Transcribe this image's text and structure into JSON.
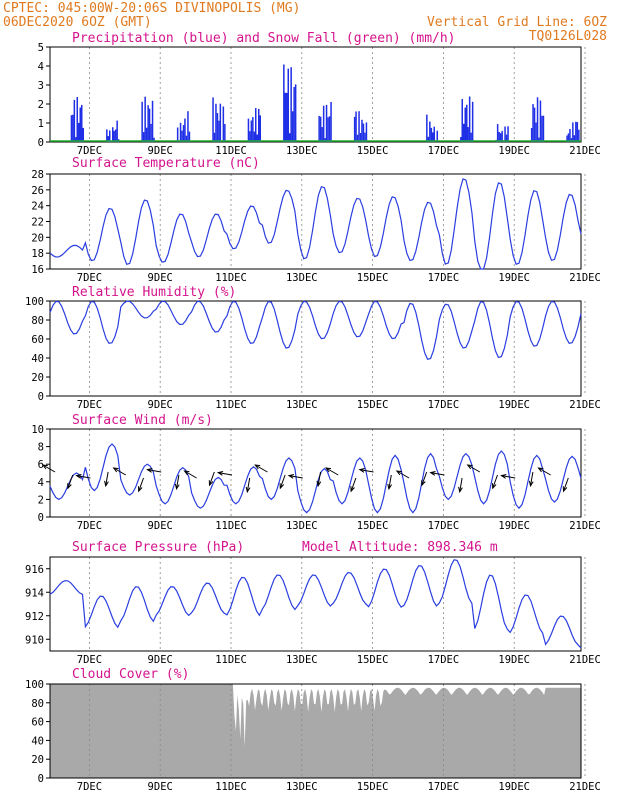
{
  "header": {
    "line1_left": "CPTEC:   045:00W-20:06S   DIVINOPOLIS (MG)",
    "line2_left": "06DEC2020 6OZ (GMT)",
    "line1_right": "Vertical Grid Line: 6OZ",
    "line2_right": "TQ0126L028"
  },
  "colors": {
    "header": "#e07a1f",
    "title": "#d4148c",
    "precip": "#1f2fe6",
    "snow": "#22b02a",
    "line": "#2a3ee0",
    "cloud": "#a9a9a9",
    "arrow": "#000000"
  },
  "x_labels": [
    "7DEC",
    "9DEC",
    "11DEC",
    "13DEC",
    "15DEC",
    "17DEC",
    "19DEC",
    "21DEC"
  ],
  "chart_data": [
    {
      "type": "bar",
      "id": "precip",
      "title": "Precipitation (blue) and Snow Fall (green) (mm/h)",
      "ylim": [
        0,
        5
      ],
      "yticks": [
        0,
        1,
        2,
        3,
        4,
        5
      ],
      "series": [
        {
          "name": "Precipitation",
          "values": [
            1,
            1,
            0,
            0,
            0,
            0,
            0,
            0,
            0,
            0,
            0,
            0,
            0,
            0,
            0,
            0,
            0,
            0,
            0,
            0,
            0,
            0,
            0,
            0,
            0,
            0,
            0,
            0,
            0,
            0,
            0,
            0,
            0,
            0,
            0,
            0,
            0,
            0,
            0,
            0,
            0,
            0,
            0,
            0,
            0,
            0,
            0,
            0,
            0,
            0,
            0,
            0,
            0,
            0,
            0,
            0,
            0,
            0,
            0,
            0,
            0,
            0,
            0,
            0,
            0,
            0,
            0,
            0,
            0,
            0,
            0,
            0,
            0,
            0,
            0,
            0,
            0,
            0,
            0,
            0,
            0,
            0,
            0,
            0,
            0,
            0,
            0,
            0,
            0,
            0,
            0,
            0,
            0,
            0,
            0,
            0,
            0,
            0,
            0,
            0,
            0,
            0,
            0,
            0,
            0,
            0,
            0,
            0,
            0,
            0,
            0,
            0,
            0,
            0,
            0,
            0,
            0,
            0,
            0,
            0,
            0,
            0,
            0,
            0,
            0,
            0,
            0,
            0,
            0,
            0,
            0,
            0,
            0,
            0,
            0,
            0,
            0,
            0,
            0,
            0,
            0,
            0,
            0,
            0,
            0,
            0,
            0,
            0,
            0,
            0,
            0,
            0,
            0,
            0,
            0,
            0,
            0,
            0,
            0,
            0,
            0,
            0,
            0,
            0,
            0,
            0,
            0,
            0,
            0,
            0,
            0,
            0,
            0,
            0,
            0,
            0,
            0,
            0,
            0,
            0,
            0,
            0,
            0,
            0,
            0,
            0,
            0,
            0,
            0,
            0,
            0,
            0,
            0,
            0,
            0,
            0,
            0,
            0,
            0,
            0,
            0,
            0,
            0,
            0,
            0,
            0,
            0,
            0,
            0,
            0,
            0,
            0,
            0,
            0,
            0,
            0,
            0,
            0,
            0,
            0,
            0,
            0,
            0,
            0,
            0,
            0,
            0,
            0,
            0,
            0,
            0,
            0,
            0,
            0,
            0,
            0,
            0,
            0,
            0,
            0,
            0,
            0,
            0,
            0,
            0,
            0,
            0,
            0,
            0,
            0,
            0,
            0,
            0,
            0,
            0,
            0,
            0,
            0,
            0,
            0,
            0,
            0,
            0,
            0,
            0,
            0,
            0,
            0,
            0,
            0,
            0,
            0,
            0,
            0,
            0,
            0,
            0,
            0,
            0,
            0,
            0,
            0,
            0,
            0,
            0,
            0,
            0,
            0,
            0,
            0,
            0,
            0,
            0,
            0,
            0,
            0,
            0,
            0,
            0,
            0,
            0,
            0,
            0,
            0,
            0,
            0,
            0,
            0,
            0,
            0,
            0,
            0,
            0,
            0,
            0,
            0,
            0,
            0,
            0,
            0,
            0,
            0,
            0,
            0,
            0,
            0,
            0,
            0,
            0,
            0,
            0,
            0,
            0,
            0,
            0,
            0,
            0,
            0,
            0,
            0,
            0,
            0,
            0,
            0,
            0,
            0,
            0,
            0,
            0,
            0,
            0,
            0,
            0,
            0,
            0,
            0,
            0,
            0,
            0,
            0,
            0,
            0,
            0,
            0,
            0,
            0,
            0,
            0,
            0,
            0,
            0,
            0,
            0,
            0,
            0,
            0,
            0,
            0,
            0,
            0,
            0,
            0,
            0,
            0,
            0,
            0,
            0,
            0,
            0
          ]
        },
        {
          "name": "Snow Fall",
          "values": []
        }
      ],
      "xlabels": [
        "7DEC",
        "9DEC",
        "11DEC",
        "13DEC",
        "15DEC",
        "17DEC",
        "19DEC",
        "21DEC"
      ]
    },
    {
      "type": "line",
      "id": "temp",
      "title": "Surface Temperature (nC)",
      "ylim": [
        16,
        28
      ],
      "yticks": [
        16,
        18,
        20,
        22,
        24,
        26,
        28
      ],
      "daily_max": [
        19,
        23.7,
        24.8,
        23,
        23,
        24,
        26,
        26.5,
        25,
        25.2,
        24.5,
        27.5,
        27,
        26,
        25.5,
        25,
        24.5
      ],
      "daily_min": [
        17.5,
        17,
        16.5,
        16.8,
        17.5,
        18.5,
        19.2,
        17.2,
        18,
        17.5,
        17,
        16.5,
        15.5,
        16.5,
        17,
        18,
        20
      ]
    },
    {
      "type": "line",
      "id": "rh",
      "title": "Relative Humidity (%)",
      "ylim": [
        0,
        100
      ],
      "yticks": [
        0,
        20,
        40,
        60,
        80,
        100
      ],
      "daily_max": [
        100,
        100,
        100,
        100,
        100,
        100,
        100,
        100,
        100,
        100,
        98,
        97,
        100,
        100,
        100,
        100,
        100
      ],
      "daily_min": [
        65,
        55,
        82,
        75,
        67,
        55,
        50,
        60,
        62,
        60,
        38,
        50,
        40,
        52,
        55,
        62,
        80
      ]
    },
    {
      "type": "line",
      "id": "wind",
      "title": "Surface Wind (m/s)",
      "ylim": [
        0,
        10
      ],
      "yticks": [
        0,
        2,
        4,
        6,
        8,
        10
      ],
      "daily_max": [
        5,
        8.3,
        6,
        5.6,
        4.5,
        5.7,
        6.7,
        5.5,
        6.7,
        7,
        7.2,
        7.2,
        7.5,
        7,
        6.9,
        7,
        7.9
      ],
      "daily_min": [
        2,
        3,
        2.5,
        1.5,
        1,
        1.5,
        2,
        0.5,
        1.5,
        0.5,
        0.5,
        2,
        1.5,
        1,
        1.7,
        1.8,
        2.5
      ]
    },
    {
      "type": "line",
      "id": "pres",
      "title": "Surface Pressure (hPa)",
      "annotation": "Model Altitude: 898.346 m",
      "ylim": [
        909,
        917
      ],
      "yticks": [
        910,
        912,
        914,
        916
      ],
      "daily_max": [
        915,
        913.7,
        914.5,
        914.5,
        914.8,
        915.3,
        915.5,
        915.5,
        915.7,
        916,
        916.3,
        916.8,
        915.5,
        913.8,
        912,
        911.5,
        911
      ],
      "daily_min": [
        913.8,
        911,
        911.5,
        912,
        912.2,
        912,
        912.5,
        912.8,
        913,
        912.7,
        912.8,
        913,
        910.8,
        910.5,
        909.5,
        909.2,
        909.3
      ]
    },
    {
      "type": "area",
      "id": "cloud",
      "title": "Cloud Cover (%)",
      "ylim": [
        0,
        100
      ],
      "yticks": [
        0,
        20,
        40,
        60,
        80,
        100
      ]
    }
  ]
}
